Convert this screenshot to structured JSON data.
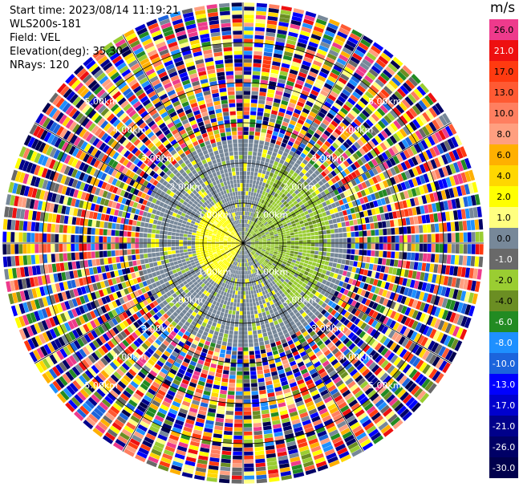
{
  "header": {
    "start_time": "Start time: 2023/08/14 11:19:21",
    "station": "WLS200s-181",
    "field": "Field: VEL",
    "elevation": "Elevation(deg): 35.30",
    "nrays": "NRays: 120"
  },
  "colorbar": {
    "unit": "m/s",
    "levels": [
      {
        "label": "26.0",
        "color": "#ee3a8c",
        "text": "#000000"
      },
      {
        "label": "21.0",
        "color": "#ee1010",
        "text": "#ffffff"
      },
      {
        "label": "17.0",
        "color": "#ff3a10",
        "text": "#000000"
      },
      {
        "label": "13.0",
        "color": "#ff5a33",
        "text": "#000000"
      },
      {
        "label": "10.0",
        "color": "#ff7f60",
        "text": "#000000"
      },
      {
        "label": "8.0",
        "color": "#ff9f80",
        "text": "#000000"
      },
      {
        "label": "6.0",
        "color": "#ffb000",
        "text": "#000000"
      },
      {
        "label": "4.0",
        "color": "#ffd700",
        "text": "#000000"
      },
      {
        "label": "2.0",
        "color": "#ffff00",
        "text": "#000000"
      },
      {
        "label": "1.0",
        "color": "#ffff80",
        "text": "#000000"
      },
      {
        "label": "0.0",
        "color": "#778899",
        "text": "#000000"
      },
      {
        "label": "-1.0",
        "color": "#696969",
        "text": "#ffffff"
      },
      {
        "label": "-2.0",
        "color": "#9acd32",
        "text": "#000000"
      },
      {
        "label": "-4.0",
        "color": "#6b8e23",
        "text": "#000000"
      },
      {
        "label": "-6.0",
        "color": "#228b22",
        "text": "#ffffff"
      },
      {
        "label": "-8.0",
        "color": "#1e90ff",
        "text": "#ffffff"
      },
      {
        "label": "-10.0",
        "color": "#1c64dc",
        "text": "#ffffff"
      },
      {
        "label": "-13.0",
        "color": "#0000ff",
        "text": "#ffffff"
      },
      {
        "label": "-17.0",
        "color": "#0000cd",
        "text": "#ffffff"
      },
      {
        "label": "-21.0",
        "color": "#00008b",
        "text": "#ffffff"
      },
      {
        "label": "-26.0",
        "color": "#000066",
        "text": "#ffffff"
      },
      {
        "label": "-30.0",
        "color": "#00004d",
        "text": "#ffffff"
      }
    ]
  },
  "chart_data": {
    "type": "ppi",
    "field": "VEL",
    "units": "m/s",
    "elevation_deg": 35.3,
    "n_rays": 120,
    "max_range_km": 6.0,
    "range_rings_km": [
      1.0,
      2.0,
      3.0,
      4.0,
      5.0
    ],
    "ring_labels": [
      "1.00km",
      "2.00km",
      "3.00km",
      "4.00km",
      "5.00km"
    ],
    "spoke_angles_deg": [
      0,
      30,
      60,
      90,
      120,
      150,
      180,
      210,
      240,
      270,
      300,
      330
    ],
    "velocity_regions": [
      {
        "azimuth_deg": [
          210,
          330
        ],
        "range_km": [
          0.0,
          1.2
        ],
        "typical_value": 2.0,
        "note": "west sector, positive (yellow)"
      },
      {
        "azimuth_deg": [
          20,
          140
        ],
        "range_km": [
          0.2,
          2.2
        ],
        "typical_value": -2.0,
        "note": "east sector, negative (green)"
      },
      {
        "azimuth_deg": [
          0,
          360
        ],
        "range_km": [
          1.0,
          2.5
        ],
        "typical_value": 0.0,
        "note": "mostly near-zero (gray)"
      },
      {
        "azimuth_deg": [
          0,
          360
        ],
        "range_km": [
          2.5,
          6.0
        ],
        "typical_value": null,
        "note": "noisy / random values"
      }
    ]
  }
}
